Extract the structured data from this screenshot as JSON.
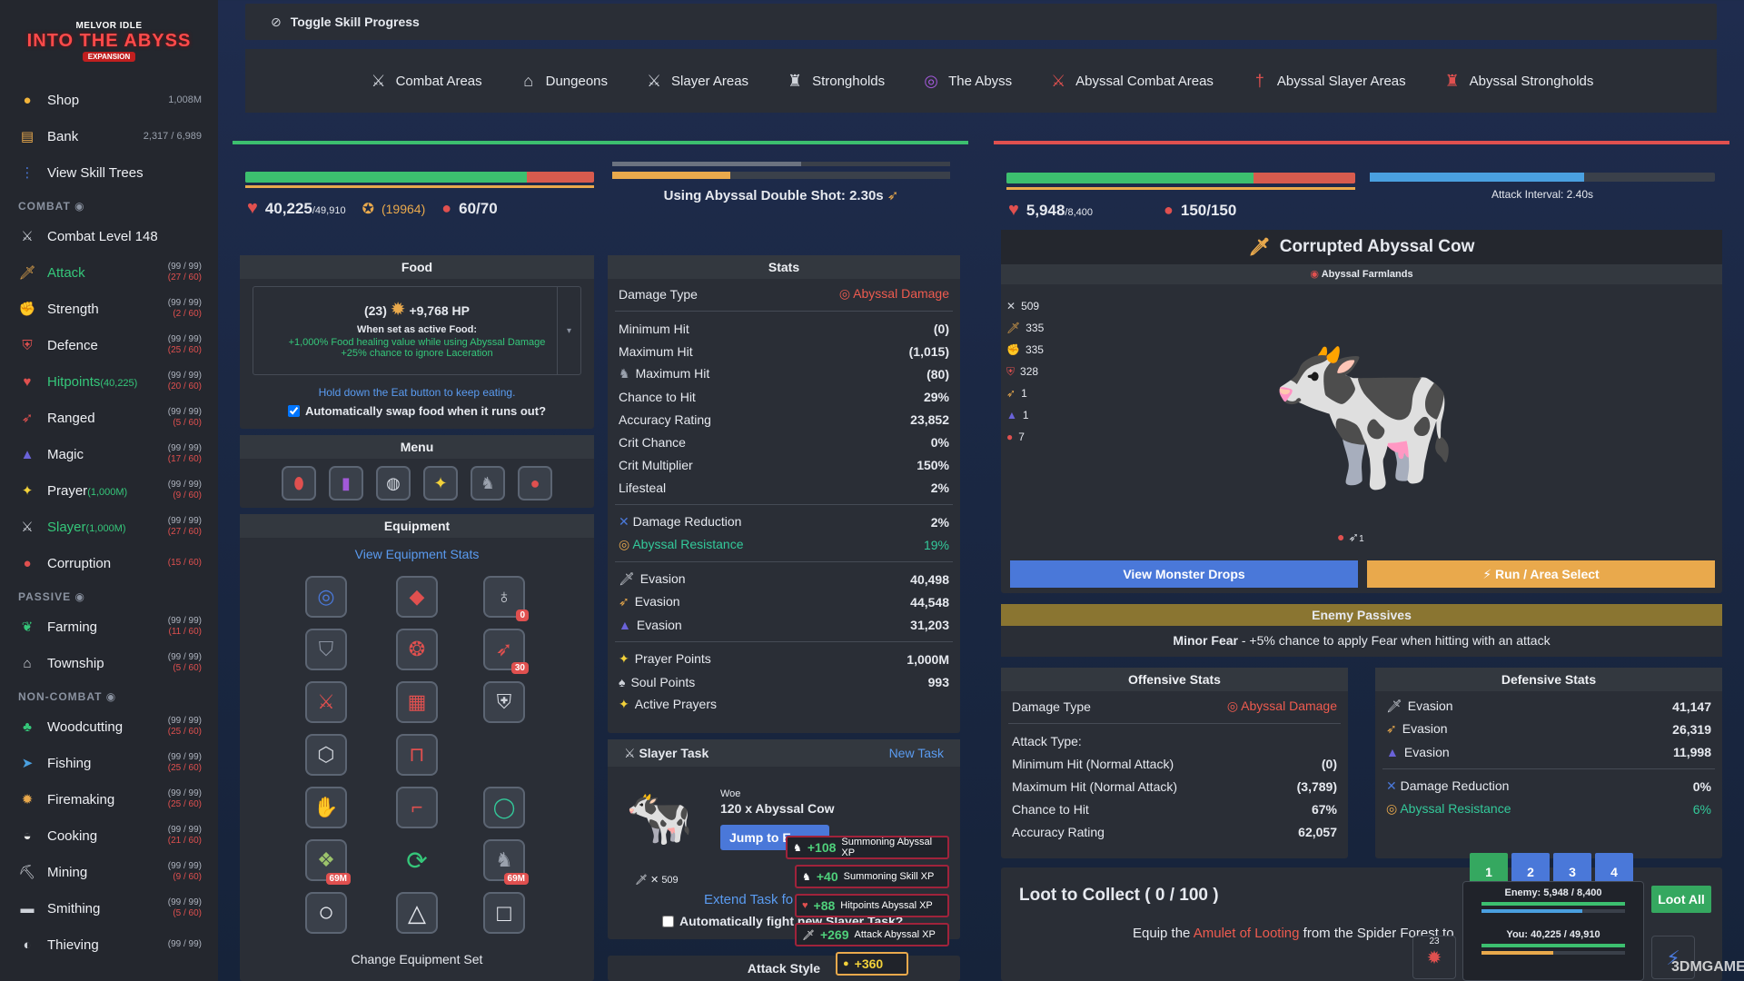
{
  "logo": {
    "line1": "MELVOR IDLE",
    "line2": "INTO THE ABYSS",
    "line3": "EXPANSION"
  },
  "sidebar": {
    "top": [
      {
        "label": "Shop",
        "right": "1,008M",
        "icon": "coin-icon"
      },
      {
        "label": "Bank",
        "right": "2,317 / 6,989",
        "icon": "bank-icon"
      },
      {
        "label": "View Skill Trees",
        "right": "",
        "icon": "skill-tree-icon"
      }
    ],
    "combat_header": "COMBAT",
    "combat": [
      {
        "label": "Combat Level 148",
        "a": "",
        "b": "",
        "icon": "swords-icon",
        "color": "#eef0f4"
      },
      {
        "label": "Attack",
        "a": "(99 / 99)",
        "b": "(27 / 60)",
        "icon": "attack-icon",
        "color": "#35c77a"
      },
      {
        "label": "Strength",
        "a": "(99 / 99)",
        "b": "(2 / 60)",
        "icon": "strength-icon",
        "color": "#eef0f4"
      },
      {
        "label": "Defence",
        "a": "(99 / 99)",
        "b": "(25 / 60)",
        "icon": "defence-icon",
        "color": "#eef0f4"
      },
      {
        "label": "Hitpoints",
        "sub": "(40,225)",
        "a": "(99 / 99)",
        "b": "(20 / 60)",
        "icon": "heart-icon",
        "color": "#35c77a"
      },
      {
        "label": "Ranged",
        "a": "(99 / 99)",
        "b": "(5 / 60)",
        "icon": "bow-icon",
        "color": "#eef0f4"
      },
      {
        "label": "Magic",
        "a": "(99 / 99)",
        "b": "(17 / 60)",
        "icon": "wizard-hat-icon",
        "color": "#eef0f4"
      },
      {
        "label": "Prayer",
        "sub": "(1,000M)",
        "a": "(99 / 99)",
        "b": "(9 / 60)",
        "icon": "prayer-icon",
        "color": "#eef0f4"
      },
      {
        "label": "Slayer",
        "sub": "(1,000M)",
        "a": "(99 / 99)",
        "b": "(27 / 60)",
        "icon": "slayer-icon",
        "color": "#35c77a"
      },
      {
        "label": "Corruption",
        "a": "",
        "b": "(15 / 60)",
        "icon": "corruption-icon",
        "color": "#eef0f4"
      }
    ],
    "passive_header": "PASSIVE",
    "passive": [
      {
        "label": "Farming",
        "a": "(99 / 99)",
        "b": "(11 / 60)",
        "icon": "farming-icon"
      },
      {
        "label": "Township",
        "a": "(99 / 99)",
        "b": "(5 / 60)",
        "icon": "township-icon"
      }
    ],
    "noncombat_header": "NON-COMBAT",
    "noncombat": [
      {
        "label": "Woodcutting",
        "a": "(99 / 99)",
        "b": "(25 / 60)",
        "icon": "tree-icon"
      },
      {
        "label": "Fishing",
        "a": "(99 / 99)",
        "b": "(25 / 60)",
        "icon": "fish-icon"
      },
      {
        "label": "Firemaking",
        "a": "(99 / 99)",
        "b": "(25 / 60)",
        "icon": "fire-icon"
      },
      {
        "label": "Cooking",
        "a": "(99 / 99)",
        "b": "(21 / 60)",
        "icon": "cooking-icon"
      },
      {
        "label": "Mining",
        "a": "(99 / 99)",
        "b": "(9 / 60)",
        "icon": "pickaxe-icon"
      },
      {
        "label": "Smithing",
        "a": "(99 / 99)",
        "b": "(5 / 60)",
        "icon": "anvil-icon"
      },
      {
        "label": "Thieving",
        "a": "(99 / 99)",
        "b": "",
        "icon": "thieving-icon"
      }
    ]
  },
  "topbar": {
    "label": "Toggle Skill Progress"
  },
  "nav": [
    {
      "label": "Combat Areas",
      "icon": "crossed-swords-icon"
    },
    {
      "label": "Dungeons",
      "icon": "dungeon-icon"
    },
    {
      "label": "Slayer Areas",
      "icon": "slayer-area-icon"
    },
    {
      "label": "Strongholds",
      "icon": "castle-icon"
    },
    {
      "label": "The Abyss",
      "icon": "abyss-swirl-icon"
    },
    {
      "label": "Abyssal Combat Areas",
      "icon": "abyssal-swords-icon"
    },
    {
      "label": "Abyssal Slayer Areas",
      "icon": "abyssal-slayer-icon"
    },
    {
      "label": "Abyssal Strongholds",
      "icon": "abyssal-castle-icon"
    }
  ],
  "player": {
    "hp": "40,225",
    "hp_max": "/49,910",
    "hp_fill": 0.806,
    "summon": "(19964)",
    "prayer": "60/70",
    "attack_text": "Using Abyssal Double Shot: 2.30s",
    "attack_progress": 0.35
  },
  "food": {
    "title": "Food",
    "qty": "(23)",
    "hp": "+9,768 HP",
    "note": "When set as active Food:",
    "effect1": "+1,000% Food healing value while using Abyssal Damage",
    "effect2": "+25% chance to ignore Laceration",
    "hint": "Hold down the Eat button to keep eating.",
    "auto": "Automatically swap food when it runs out?"
  },
  "menu": {
    "title": "Menu"
  },
  "equipment": {
    "title": "Equipment",
    "link": "View Equipment Stats",
    "badges": {
      "ammo": "0",
      "quiver": "30",
      "sum1": "69M",
      "sum2": "69M"
    },
    "change_set": "Change Equipment Set"
  },
  "stats": {
    "title": "Stats",
    "damage_type_label": "Damage Type",
    "damage_type_value": "Abyssal Damage",
    "rows1": [
      {
        "label": "Minimum Hit",
        "value": "(0)"
      },
      {
        "label": "Maximum Hit",
        "value": "(1,015)"
      },
      {
        "label": "Maximum Hit",
        "value": "(80)"
      },
      {
        "label": "Chance to Hit",
        "value": "29%"
      },
      {
        "label": "Accuracy Rating",
        "value": "23,852"
      },
      {
        "label": "Crit Chance",
        "value": "0%"
      },
      {
        "label": "Crit Multiplier",
        "value": "150%"
      },
      {
        "label": "Lifesteal",
        "value": "2%"
      }
    ],
    "dr_label": "Damage Reduction",
    "dr_value": "2%",
    "ar_label": "Abyssal Resistance",
    "ar_value": "19%",
    "evasion": [
      {
        "label": "Evasion",
        "value": "40,498"
      },
      {
        "label": "Evasion",
        "value": "44,548"
      },
      {
        "label": "Evasion",
        "value": "31,203"
      }
    ],
    "extra": [
      {
        "label": "Prayer Points",
        "value": "1,000M"
      },
      {
        "label": "Soul Points",
        "value": "993"
      },
      {
        "label": "Active Prayers",
        "value": ""
      }
    ]
  },
  "slayer": {
    "title": "Slayer Task",
    "new_task": "New Task",
    "tier": "Woe",
    "task": "120 x Abyssal Cow",
    "jump": "Jump to E",
    "count": "509",
    "extend": "Extend Task fo",
    "auto": "Automatically fight new Slayer Task?"
  },
  "xp_popups": [
    {
      "value": "+108",
      "label": "Summoning Abyssal XP"
    },
    {
      "value": "+40",
      "label": "Summoning Skill XP"
    },
    {
      "value": "+88",
      "label": "Hitpoints Abyssal XP"
    },
    {
      "value": "+269",
      "label": "Attack Abyssal XP"
    },
    {
      "value": "+360",
      "label": ""
    }
  ],
  "attack_style": {
    "title": "Attack Style"
  },
  "enemy": {
    "hp": "5,948",
    "hp_max": "/8,400",
    "hp_fill": 0.708,
    "prayer": "150/150",
    "interval": "Attack Interval: 2.40s",
    "interval_fill": 0.62,
    "name": "Corrupted Abyssal Cow",
    "area": "Abyssal Farmlands",
    "side_stats": [
      "509",
      "335",
      "335",
      "328",
      "1",
      "1",
      "7"
    ],
    "drops_button": "View Monster Drops",
    "run_button": "Run / Area Select",
    "passives_title": "Enemy Passives",
    "passive_name": "Minor Fear",
    "passive_desc": " - +5% chance to apply Fear when hitting with an attack",
    "bottom_count": "1"
  },
  "offensive": {
    "title": "Offensive Stats",
    "damage_type_label": "Damage Type",
    "damage_type_value": "Abyssal Damage",
    "rows": [
      {
        "label": "Attack Type:",
        "value": ""
      },
      {
        "label": "Minimum Hit (Normal Attack)",
        "value": "(0)"
      },
      {
        "label": "Maximum Hit (Normal Attack)",
        "value": "(3,789)"
      },
      {
        "label": "Chance to Hit",
        "value": "67%"
      },
      {
        "label": "Accuracy Rating",
        "value": "62,057"
      }
    ]
  },
  "defensive": {
    "title": "Defensive Stats",
    "evasion": [
      {
        "label": "Evasion",
        "value": "41,147"
      },
      {
        "label": "Evasion",
        "value": "26,319"
      },
      {
        "label": "Evasion",
        "value": "11,998"
      }
    ],
    "dr_label": "Damage Reduction",
    "dr_value": "0%",
    "ar_label": "Abyssal Resistance",
    "ar_value": "6%"
  },
  "loot": {
    "title": "Loot to Collect ( 0 / 100 )",
    "text_a": "Equip the ",
    "link": "Amulet of Looting",
    "text_b": " from the Spider Forest to",
    "loot_all": "Loot All",
    "pages": [
      "1",
      "2",
      "3",
      "4"
    ]
  },
  "mini": {
    "enemy": "Enemy: 5,948 / 8,400",
    "you": "You: 40,225 / 49,910",
    "count": "23"
  },
  "watermark": "3DMGAME"
}
